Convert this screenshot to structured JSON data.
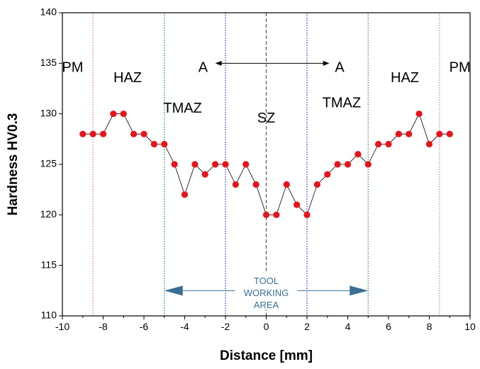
{
  "chart_data": {
    "type": "scatter",
    "title": "",
    "xlabel": "Distance [mm]",
    "ylabel": "Hardness HV0.3",
    "xlim": [
      -10,
      10
    ],
    "ylim": [
      110,
      140
    ],
    "xticks": [
      -10,
      -8,
      -6,
      -4,
      -2,
      0,
      2,
      4,
      6,
      8,
      10
    ],
    "yticks": [
      110,
      115,
      120,
      125,
      130,
      135,
      140
    ],
    "x_tick_labels": [
      "-10",
      "-8",
      "-6",
      "-4",
      "-2",
      "0",
      "2",
      "4",
      "6",
      "8",
      "10"
    ],
    "y_tick_labels": [
      "110",
      "115",
      "120",
      "125",
      "130",
      "135",
      "140"
    ],
    "grid": false,
    "marker_color": "#e8141b",
    "line_color": "#000000",
    "series": [
      {
        "x": [
          -9,
          -8.5,
          -8,
          -7.5,
          -7,
          -6.5,
          -6,
          -5.5,
          -5,
          -4.5,
          -4,
          -3.5,
          -3,
          -2.5,
          -2,
          -1.5,
          -1,
          -0.5,
          0,
          0.5,
          1,
          1.5,
          2,
          2.5,
          3,
          3.5,
          4,
          4.5,
          5,
          5.5,
          6,
          6.5,
          7,
          7.5,
          8,
          8.5,
          9
        ],
        "y": [
          128,
          128,
          128,
          130,
          130,
          128,
          128,
          127,
          127,
          125,
          122,
          125,
          124,
          125,
          125,
          123,
          125,
          123,
          120,
          120,
          123,
          121,
          120,
          123,
          124,
          125,
          125,
          126,
          125,
          127,
          127,
          128,
          128,
          130,
          127,
          128,
          128
        ]
      }
    ],
    "vertical_lines": [
      {
        "x": -8.5,
        "color": "#d070d0",
        "style": "dotted"
      },
      {
        "x": 8.5,
        "color": "#d070d0",
        "style": "dotted"
      },
      {
        "x": -5,
        "color": "#1a9a3a",
        "style": "dotted"
      },
      {
        "x": 5,
        "color": "#1a9a3a",
        "style": "dotted"
      },
      {
        "x": -2,
        "color": "#2a2ab0",
        "style": "dotted"
      },
      {
        "x": 2,
        "color": "#2a2ab0",
        "style": "dotted"
      },
      {
        "x": 0,
        "color": "#555555",
        "style": "dashed"
      }
    ],
    "annotations": [
      {
        "text": "PM",
        "x": -9.5,
        "y": 134.5
      },
      {
        "text": "HAZ",
        "x": -6.8,
        "y": 133.5
      },
      {
        "text": "TMAZ",
        "x": -4.1,
        "y": 130.5
      },
      {
        "text": "SZ",
        "x": 0,
        "y": 129.5
      },
      {
        "text": "TMAZ",
        "x": 3.7,
        "y": 131
      },
      {
        "text": "HAZ",
        "x": 6.8,
        "y": 133.5
      },
      {
        "text": "PM",
        "x": 9.5,
        "y": 134.5
      },
      {
        "text": "A",
        "x": -3.1,
        "y": 134.5
      },
      {
        "text": "A",
        "x": 3.6,
        "y": 134.5
      }
    ],
    "double_arrows": [
      {
        "from": -2.5,
        "to": 3.1,
        "y": 135,
        "color": "#000000"
      },
      {
        "from": -5,
        "to": 5,
        "y": 112.5,
        "color": "#3a6f95"
      }
    ],
    "tool_label_lines": [
      "TOOL",
      "WORKING",
      "AREA"
    ]
  }
}
